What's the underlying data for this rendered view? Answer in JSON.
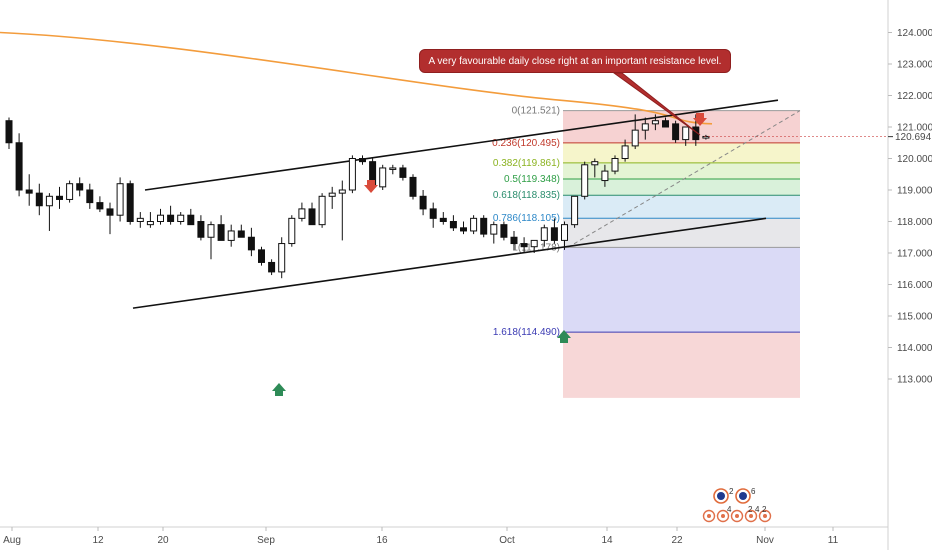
{
  "chart_data": {
    "type": "candlestick",
    "price_axis": {
      "ticks": [
        "124.000",
        "123.000",
        "122.000",
        "121.000",
        "120.000",
        "119.000",
        "118.000",
        "117.000",
        "116.000",
        "115.000",
        "114.000",
        "113.000"
      ],
      "last_price": "120.694"
    },
    "date_axis": {
      "ticks": [
        "Aug",
        "12",
        "20",
        "Sep",
        "16",
        "Oct",
        "14",
        "22",
        "Nov",
        "11"
      ]
    },
    "candles": [
      {
        "o": 121.2,
        "h": 121.3,
        "l": 120.3,
        "c": 120.5
      },
      {
        "o": 120.5,
        "h": 120.8,
        "l": 118.8,
        "c": 119.0
      },
      {
        "o": 119.0,
        "h": 119.5,
        "l": 118.5,
        "c": 118.9
      },
      {
        "o": 118.9,
        "h": 119.2,
        "l": 118.2,
        "c": 118.5
      },
      {
        "o": 118.5,
        "h": 118.9,
        "l": 117.7,
        "c": 118.8
      },
      {
        "o": 118.8,
        "h": 119.1,
        "l": 118.4,
        "c": 118.7
      },
      {
        "o": 118.7,
        "h": 119.3,
        "l": 118.6,
        "c": 119.2
      },
      {
        "o": 119.2,
        "h": 119.4,
        "l": 118.8,
        "c": 119.0
      },
      {
        "o": 119.0,
        "h": 119.2,
        "l": 118.4,
        "c": 118.6
      },
      {
        "o": 118.6,
        "h": 118.8,
        "l": 118.3,
        "c": 118.4
      },
      {
        "o": 118.4,
        "h": 118.6,
        "l": 117.6,
        "c": 118.2
      },
      {
        "o": 118.2,
        "h": 119.4,
        "l": 118.0,
        "c": 119.2
      },
      {
        "o": 119.2,
        "h": 119.3,
        "l": 117.9,
        "c": 118.0
      },
      {
        "o": 118.0,
        "h": 118.3,
        "l": 117.8,
        "c": 118.1
      },
      {
        "o": 117.9,
        "h": 118.3,
        "l": 117.8,
        "c": 118.0
      },
      {
        "o": 118.0,
        "h": 118.4,
        "l": 117.9,
        "c": 118.2
      },
      {
        "o": 118.2,
        "h": 118.5,
        "l": 117.9,
        "c": 118.0
      },
      {
        "o": 118.0,
        "h": 118.3,
        "l": 117.9,
        "c": 118.2
      },
      {
        "o": 118.2,
        "h": 118.4,
        "l": 117.9,
        "c": 117.9
      },
      {
        "o": 118.0,
        "h": 118.2,
        "l": 117.4,
        "c": 117.5
      },
      {
        "o": 117.5,
        "h": 118.0,
        "l": 116.8,
        "c": 117.9
      },
      {
        "o": 117.9,
        "h": 118.2,
        "l": 117.4,
        "c": 117.4
      },
      {
        "o": 117.4,
        "h": 117.9,
        "l": 117.2,
        "c": 117.7
      },
      {
        "o": 117.7,
        "h": 117.9,
        "l": 117.5,
        "c": 117.5
      },
      {
        "o": 117.5,
        "h": 117.8,
        "l": 116.9,
        "c": 117.1
      },
      {
        "o": 117.1,
        "h": 117.2,
        "l": 116.6,
        "c": 116.7
      },
      {
        "o": 116.7,
        "h": 116.8,
        "l": 116.3,
        "c": 116.4
      },
      {
        "o": 116.4,
        "h": 117.5,
        "l": 116.2,
        "c": 117.3
      },
      {
        "o": 117.3,
        "h": 118.2,
        "l": 117.2,
        "c": 118.1
      },
      {
        "o": 118.1,
        "h": 118.6,
        "l": 118.0,
        "c": 118.4
      },
      {
        "o": 118.4,
        "h": 118.6,
        "l": 117.9,
        "c": 117.9
      },
      {
        "o": 117.9,
        "h": 118.9,
        "l": 117.8,
        "c": 118.8
      },
      {
        "o": 118.8,
        "h": 119.1,
        "l": 118.4,
        "c": 118.9
      },
      {
        "o": 118.9,
        "h": 119.3,
        "l": 117.4,
        "c": 119.0
      },
      {
        "o": 119.0,
        "h": 120.1,
        "l": 118.9,
        "c": 120.0
      },
      {
        "o": 120.0,
        "h": 120.1,
        "l": 119.8,
        "c": 119.9
      },
      {
        "o": 119.9,
        "h": 120.0,
        "l": 119.0,
        "c": 119.1
      },
      {
        "o": 119.1,
        "h": 119.8,
        "l": 119.0,
        "c": 119.7
      },
      {
        "o": 119.7,
        "h": 119.8,
        "l": 119.5,
        "c": 119.7
      },
      {
        "o": 119.7,
        "h": 119.8,
        "l": 119.3,
        "c": 119.4
      },
      {
        "o": 119.4,
        "h": 119.5,
        "l": 118.7,
        "c": 118.8
      },
      {
        "o": 118.8,
        "h": 119.0,
        "l": 118.2,
        "c": 118.4
      },
      {
        "o": 118.4,
        "h": 118.6,
        "l": 117.8,
        "c": 118.1
      },
      {
        "o": 118.1,
        "h": 118.3,
        "l": 117.9,
        "c": 118.0
      },
      {
        "o": 118.0,
        "h": 118.2,
        "l": 117.7,
        "c": 117.8
      },
      {
        "o": 117.8,
        "h": 118.0,
        "l": 117.6,
        "c": 117.7
      },
      {
        "o": 117.7,
        "h": 118.2,
        "l": 117.6,
        "c": 118.1
      },
      {
        "o": 118.1,
        "h": 118.2,
        "l": 117.5,
        "c": 117.6
      },
      {
        "o": 117.6,
        "h": 118.0,
        "l": 117.3,
        "c": 117.9
      },
      {
        "o": 117.9,
        "h": 118.0,
        "l": 117.4,
        "c": 117.5
      },
      {
        "o": 117.5,
        "h": 117.7,
        "l": 117.1,
        "c": 117.3
      },
      {
        "o": 117.3,
        "h": 117.5,
        "l": 117.0,
        "c": 117.2
      },
      {
        "o": 117.2,
        "h": 117.4,
        "l": 117.0,
        "c": 117.4
      },
      {
        "o": 117.4,
        "h": 117.9,
        "l": 117.2,
        "c": 117.8
      },
      {
        "o": 117.8,
        "h": 118.1,
        "l": 117.3,
        "c": 117.4
      },
      {
        "o": 117.4,
        "h": 118.0,
        "l": 117.1,
        "c": 117.9
      },
      {
        "o": 117.9,
        "h": 118.8,
        "l": 117.8,
        "c": 118.8
      },
      {
        "o": 118.8,
        "h": 119.9,
        "l": 118.7,
        "c": 119.8
      },
      {
        "o": 119.8,
        "h": 120.0,
        "l": 119.4,
        "c": 119.9
      },
      {
        "o": 119.3,
        "h": 119.8,
        "l": 119.1,
        "c": 119.6
      },
      {
        "o": 119.6,
        "h": 120.1,
        "l": 119.5,
        "c": 120.0
      },
      {
        "o": 120.0,
        "h": 120.6,
        "l": 119.9,
        "c": 120.4
      },
      {
        "o": 120.4,
        "h": 121.4,
        "l": 120.3,
        "c": 120.9
      },
      {
        "o": 120.9,
        "h": 121.3,
        "l": 120.6,
        "c": 121.1
      },
      {
        "o": 121.1,
        "h": 121.4,
        "l": 120.9,
        "c": 121.2
      },
      {
        "o": 121.2,
        "h": 121.3,
        "l": 121.0,
        "c": 121.0
      },
      {
        "o": 121.1,
        "h": 121.2,
        "l": 120.5,
        "c": 120.6
      },
      {
        "o": 120.6,
        "h": 121.0,
        "l": 120.4,
        "c": 121.0
      },
      {
        "o": 121.0,
        "h": 121.4,
        "l": 120.4,
        "c": 120.6
      },
      {
        "o": 120.65,
        "h": 120.75,
        "l": 120.6,
        "c": 120.7
      }
    ],
    "moving_average": {
      "color": "#f39c3c",
      "from": 124.0,
      "to": 121.1
    },
    "fibonacci": {
      "top_label": "0(121.521)",
      "bottom_label": "1(117.178)",
      "levels": [
        {
          "label": "0.236(120.495)",
          "value": 120.495,
          "color": "#c0392b"
        },
        {
          "label": "0.382(119.861)",
          "value": 119.861,
          "color": "#8bb320"
        },
        {
          "label": "0.5(119.348)",
          "value": 119.348,
          "color": "#2e9e46"
        },
        {
          "label": "0.618(118.835)",
          "value": 118.835,
          "color": "#2a8d6d"
        },
        {
          "label": "0.786(118.105)",
          "value": 118.105,
          "color": "#2d88c8"
        },
        {
          "label": "1.618(114.490)",
          "value": 114.49,
          "color": "#3b3bb3"
        }
      ],
      "zones": [
        {
          "from": 121.521,
          "to": 120.495,
          "color": "#f5caca"
        },
        {
          "from": 120.495,
          "to": 119.861,
          "color": "#f4f3c2"
        },
        {
          "from": 119.861,
          "to": 119.348,
          "color": "#dff2cc"
        },
        {
          "from": 119.348,
          "to": 118.835,
          "color": "#d2efd4"
        },
        {
          "from": 118.835,
          "to": 118.105,
          "color": "#d3e8f5"
        },
        {
          "from": 118.105,
          "to": 117.178,
          "color": "#e3e3e6"
        },
        {
          "from": 117.178,
          "to": 114.49,
          "color": "#d4d4f4"
        },
        {
          "from": 114.49,
          "to": 112.4,
          "color": "#f6d0d0"
        }
      ]
    },
    "channel": {
      "upper": [
        {
          "x": "Aug 20",
          "y": 119.0
        },
        {
          "x": "Oct 25",
          "y": 121.85
        }
      ],
      "lower": [
        {
          "x": "Aug 17",
          "y": 115.25
        },
        {
          "x": "Oct 25",
          "y": 118.1
        }
      ]
    },
    "annotation": "A very favourable daily close right at an important resistance level.",
    "markers": [
      {
        "type": "down-arrow",
        "color": "#d94a3a"
      },
      {
        "type": "down-arrow",
        "color": "#d94a3a"
      },
      {
        "type": "up-arrow",
        "color": "#2e8b57"
      },
      {
        "type": "up-arrow",
        "color": "#2e8b57"
      }
    ],
    "colors": {
      "up": "#ffffff",
      "down": "#111111",
      "outline": "#111111"
    },
    "badges": [
      "2",
      "6",
      "4",
      "2",
      "4",
      "2"
    ]
  }
}
